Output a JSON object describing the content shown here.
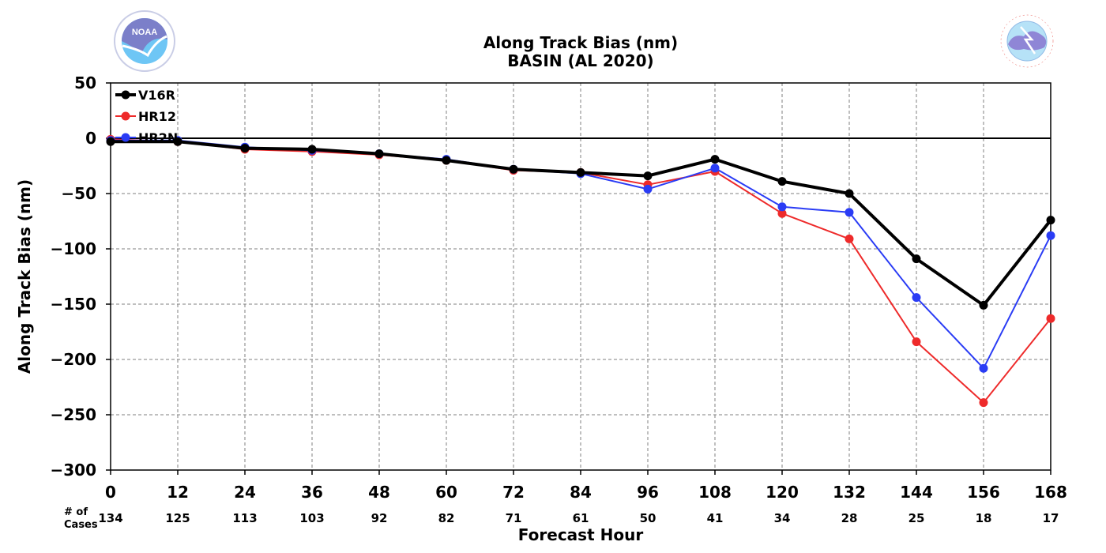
{
  "chart_data": {
    "type": "line",
    "title": "Along Track Bias (nm)",
    "subtitle": "BASIN (AL 2020)",
    "xlabel": "Forecast Hour",
    "ylabel": "Along Track Bias (nm)",
    "ylim": [
      -300,
      50
    ],
    "xlim": [
      0,
      168
    ],
    "x": [
      0,
      12,
      24,
      36,
      48,
      60,
      72,
      84,
      96,
      108,
      120,
      132,
      144,
      156,
      168
    ],
    "xticks": [
      "0",
      "12",
      "24",
      "36",
      "48",
      "60",
      "72",
      "84",
      "96",
      "108",
      "120",
      "132",
      "144",
      "156",
      "168"
    ],
    "yticks": [
      50,
      0,
      -50,
      -100,
      -150,
      -200,
      -250,
      -300
    ],
    "ytick_labels": [
      "50",
      "0",
      "−50",
      "−100",
      "−150",
      "−200",
      "−250",
      "−300"
    ],
    "cases_label_line1": "# of",
    "cases_label_line2": "Cases",
    "cases": [
      "134",
      "125",
      "113",
      "103",
      "92",
      "82",
      "71",
      "61",
      "50",
      "41",
      "34",
      "28",
      "25",
      "18",
      "17"
    ],
    "grid": true,
    "legend_position": "top-left",
    "series": [
      {
        "name": "V16R",
        "color": "#000000",
        "values": [
          -3,
          -3,
          -9,
          -10,
          -14,
          -20,
          -28,
          -31,
          -34,
          -19,
          -39,
          -50,
          -109,
          -151,
          -74
        ]
      },
      {
        "name": "HR12",
        "color": "#ee2a2a",
        "values": [
          -1,
          -3,
          -10,
          -12,
          -15,
          -20,
          -29,
          -31,
          -42,
          -30,
          -68,
          -91,
          -184,
          -239,
          -163
        ]
      },
      {
        "name": "HR2N",
        "color": "#2a3cf5",
        "values": [
          -2,
          -2,
          -8,
          -11,
          -14,
          -19,
          -28,
          -32,
          -46,
          -27,
          -62,
          -67,
          -144,
          -208,
          -88
        ]
      }
    ]
  },
  "logos": {
    "left": {
      "text": "NOAA",
      "icon": "noaa-logo-icon",
      "color": "#6ec6f5"
    },
    "right": {
      "text": "NATIONAL WEATHER SERVICE",
      "icon": "nws-logo-icon",
      "color": "#e8534c"
    }
  }
}
